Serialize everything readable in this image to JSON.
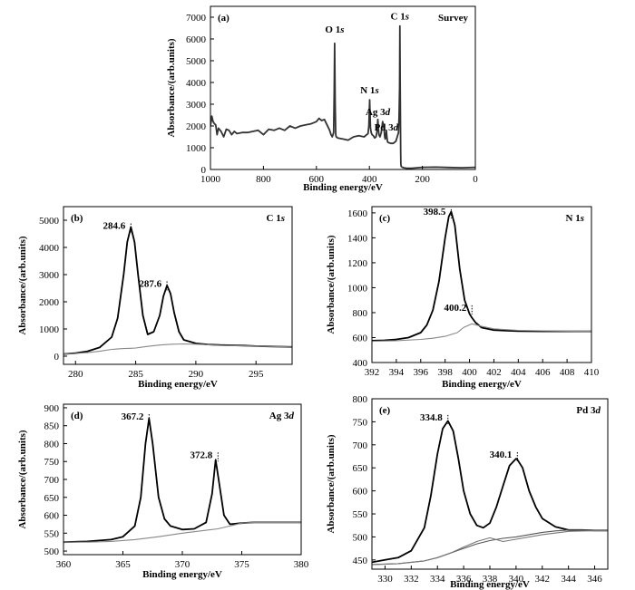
{
  "chart_data": [
    {
      "type": "line",
      "panel_label": "(a)",
      "title": "Survey",
      "xlabel": "Binding energy/eV",
      "ylabel": "Absorbance/(arb.units)",
      "xlim": [
        1000,
        0
      ],
      "ylim": [
        0,
        7500
      ],
      "x_reversed": true,
      "xticks": [
        1000,
        800,
        600,
        400,
        200,
        0
      ],
      "yticks": [
        0,
        1000,
        2000,
        3000,
        4000,
        5000,
        6000,
        7000
      ],
      "grid": false,
      "annotations": [
        {
          "text": "O 1s",
          "x": 531,
          "y": 6300
        },
        {
          "text": "N 1s",
          "x": 399,
          "y": 3500
        },
        {
          "text": "Ag 3d",
          "x": 368,
          "y": 2500
        },
        {
          "text": "Pd 3d",
          "x": 336,
          "y": 1800
        },
        {
          "text": "C 1s",
          "x": 285,
          "y": 6900
        }
      ],
      "series": [
        {
          "color": "#333333",
          "x": [
            1000,
            995,
            990,
            985,
            980,
            975,
            970,
            960,
            950,
            940,
            930,
            920,
            910,
            900,
            880,
            860,
            840,
            820,
            800,
            780,
            760,
            740,
            720,
            700,
            680,
            660,
            640,
            620,
            600,
            590,
            580,
            570,
            560,
            550,
            545,
            540,
            535,
            533,
            531,
            529,
            527,
            525,
            520,
            500,
            480,
            460,
            440,
            420,
            410,
            405,
            402,
            399,
            396,
            393,
            390,
            385,
            380,
            375,
            372,
            370,
            368,
            366,
            364,
            360,
            355,
            350,
            345,
            342,
            340,
            338,
            336,
            334,
            332,
            330,
            320,
            310,
            300,
            295,
            290,
            288,
            286,
            285,
            284,
            283,
            282,
            281,
            280,
            278,
            275,
            270,
            260,
            240,
            220,
            200,
            150,
            100,
            50,
            0
          ],
          "y": [
            2000,
            2450,
            2200,
            2100,
            2050,
            1600,
            1900,
            1750,
            1500,
            1850,
            1800,
            1600,
            1750,
            1650,
            1700,
            1700,
            1750,
            1800,
            1600,
            1850,
            1800,
            1900,
            1800,
            2000,
            1900,
            2000,
            2050,
            2100,
            2200,
            2350,
            2250,
            2300,
            2050,
            1800,
            1600,
            1500,
            1700,
            3500,
            5800,
            3000,
            1600,
            1500,
            1450,
            1400,
            1350,
            1500,
            1550,
            1500,
            1600,
            1650,
            2000,
            3200,
            1900,
            1700,
            1600,
            1550,
            1450,
            1500,
            1700,
            2000,
            2300,
            1900,
            1600,
            1500,
            1700,
            2200,
            1900,
            1500,
            1400,
            1500,
            1800,
            1500,
            1300,
            1250,
            1200,
            1200,
            1300,
            1500,
            1700,
            2400,
            3800,
            6600,
            4200,
            2500,
            800,
            250,
            150,
            120,
            100,
            80,
            60,
            60,
            80,
            100,
            110,
            90,
            80,
            100
          ]
        }
      ]
    },
    {
      "type": "line",
      "panel_label": "(b)",
      "title": "C 1s",
      "xlabel": "Binding energy/eV",
      "ylabel": "Absorbance/(arb.units)",
      "xlim": [
        279,
        298
      ],
      "ylim": [
        -300,
        5500
      ],
      "xticks": [
        280,
        285,
        290,
        295
      ],
      "yticks": [
        0,
        1000,
        2000,
        3000,
        4000,
        5000
      ],
      "grid": false,
      "annotations": [
        {
          "text": "284.6",
          "x": 284.6,
          "y": 4750
        },
        {
          "text": "287.6",
          "x": 287.6,
          "y": 2620
        }
      ],
      "series": [
        {
          "color": "#000000",
          "x": [
            279,
            280,
            281,
            282,
            283,
            283.5,
            284,
            284.3,
            284.6,
            284.9,
            285.2,
            285.6,
            286,
            286.5,
            287,
            287.3,
            287.6,
            287.9,
            288.2,
            288.6,
            289,
            290,
            291,
            292,
            293,
            294,
            295,
            296,
            297,
            298
          ],
          "y": [
            80,
            110,
            180,
            320,
            700,
            1400,
            3000,
            4200,
            4750,
            4200,
            3000,
            1500,
            800,
            900,
            1500,
            2200,
            2600,
            2300,
            1600,
            900,
            600,
            470,
            430,
            410,
            400,
            390,
            370,
            360,
            350,
            340
          ]
        },
        {
          "color": "#888888",
          "x": [
            279,
            280,
            281,
            282,
            283,
            284,
            284.6,
            285,
            285.5,
            286,
            287,
            288,
            289,
            290,
            292,
            294,
            296,
            298
          ],
          "y": [
            80,
            100,
            130,
            180,
            250,
            280,
            290,
            300,
            330,
            360,
            410,
            440,
            450,
            440,
            400,
            380,
            360,
            340
          ]
        }
      ]
    },
    {
      "type": "line",
      "panel_label": "(c)",
      "title": "N 1s",
      "xlabel": "Binding energy/eV",
      "ylabel": "Absorbance/(arb.units)",
      "xlim": [
        392,
        410
      ],
      "ylim": [
        400,
        1650
      ],
      "xticks": [
        392,
        394,
        396,
        398,
        400,
        402,
        404,
        406,
        408,
        410
      ],
      "yticks": [
        400,
        600,
        800,
        1000,
        1200,
        1400,
        1600
      ],
      "grid": false,
      "annotations": [
        {
          "text": "398.5",
          "x": 398.5,
          "y": 1600
        },
        {
          "text": "400.2",
          "x": 400.2,
          "y": 830
        }
      ],
      "series": [
        {
          "color": "#000000",
          "x": [
            392,
            393,
            394,
            395,
            396,
            396.5,
            397,
            397.5,
            398,
            398.3,
            398.5,
            398.8,
            399.2,
            399.6,
            400,
            400.2,
            400.5,
            401,
            402,
            403,
            404,
            406,
            408,
            410
          ],
          "y": [
            575,
            578,
            585,
            600,
            640,
            700,
            820,
            1050,
            1400,
            1570,
            1610,
            1500,
            1150,
            900,
            790,
            760,
            720,
            680,
            660,
            655,
            652,
            650,
            650,
            650
          ]
        },
        {
          "color": "#888888",
          "x": [
            392,
            394,
            396,
            397,
            398,
            399,
            399.5,
            400.2,
            401,
            402,
            404,
            406,
            408,
            410
          ],
          "y": [
            570,
            575,
            585,
            595,
            610,
            640,
            680,
            710,
            690,
            670,
            658,
            654,
            651,
            650
          ]
        }
      ]
    },
    {
      "type": "line",
      "panel_label": "(d)",
      "title": "Ag 3d",
      "xlabel": "Binding energy/eV",
      "ylabel": "Absorbance/(arb.units)",
      "xlim": [
        360,
        380
      ],
      "ylim": [
        490,
        910
      ],
      "xticks": [
        360,
        365,
        370,
        375,
        380
      ],
      "yticks": [
        500,
        550,
        600,
        650,
        700,
        750,
        800,
        850,
        900
      ],
      "grid": false,
      "annotations": [
        {
          "text": "367.2",
          "x": 367.2,
          "y": 872
        },
        {
          "text": "372.8",
          "x": 373.0,
          "y": 765
        }
      ],
      "series": [
        {
          "color": "#000000",
          "x": [
            360,
            362,
            364,
            365,
            366,
            366.5,
            366.9,
            367.2,
            367.5,
            368,
            368.5,
            369,
            370,
            371,
            372,
            372.5,
            372.8,
            373.1,
            373.5,
            374,
            375,
            376,
            378,
            380
          ],
          "y": [
            525,
            527,
            532,
            540,
            570,
            650,
            800,
            870,
            800,
            650,
            590,
            570,
            560,
            562,
            580,
            660,
            755,
            690,
            600,
            575,
            578,
            580,
            580,
            580
          ]
        },
        {
          "color": "#888888",
          "x": [
            360,
            362,
            364,
            366,
            368,
            370,
            372,
            373,
            374,
            375,
            376,
            378,
            380
          ],
          "y": [
            525,
            525,
            527,
            532,
            540,
            550,
            558,
            562,
            570,
            578,
            580,
            580,
            580
          ]
        }
      ]
    },
    {
      "type": "line",
      "panel_label": "(e)",
      "title": "Pd 3d",
      "xlabel": "Binding energy/eV",
      "ylabel": "Absorbance/(arb.units)",
      "xlim": [
        329,
        347
      ],
      "ylim": [
        430,
        800
      ],
      "xticks": [
        330,
        332,
        334,
        336,
        338,
        340,
        342,
        344,
        346
      ],
      "yticks": [
        450,
        500,
        550,
        600,
        650,
        700,
        750,
        800
      ],
      "grid": false,
      "annotations": [
        {
          "text": "334.8",
          "x": 334.8,
          "y": 757
        },
        {
          "text": "340.1",
          "x": 340.1,
          "y": 676
        }
      ],
      "series": [
        {
          "color": "#000000",
          "x": [
            329,
            330,
            331,
            332,
            333,
            333.5,
            334,
            334.4,
            334.8,
            335.2,
            335.6,
            336,
            336.5,
            337,
            337.5,
            338,
            338.5,
            339,
            339.5,
            340,
            340.1,
            340.5,
            341,
            341.5,
            342,
            343,
            344,
            345,
            346,
            347
          ],
          "y": [
            445,
            450,
            455,
            470,
            520,
            590,
            680,
            735,
            752,
            730,
            670,
            600,
            550,
            525,
            520,
            530,
            565,
            610,
            655,
            670,
            668,
            650,
            600,
            565,
            540,
            522,
            515,
            515,
            514,
            514
          ]
        },
        {
          "color": "#555555",
          "x": [
            329,
            331,
            333,
            334,
            335,
            336,
            337,
            338,
            339,
            340,
            341,
            342,
            343,
            344,
            345,
            347
          ],
          "y": [
            440,
            442,
            448,
            455,
            465,
            475,
            485,
            492,
            497,
            500,
            505,
            510,
            513,
            515,
            515,
            514
          ]
        },
        {
          "color": "#777777",
          "x": [
            329,
            331,
            333,
            334,
            335,
            336,
            337,
            338,
            339,
            340,
            342,
            344,
            347
          ],
          "y": [
            440,
            442,
            448,
            455,
            465,
            478,
            490,
            498,
            490,
            495,
            505,
            512,
            514
          ]
        }
      ]
    }
  ]
}
